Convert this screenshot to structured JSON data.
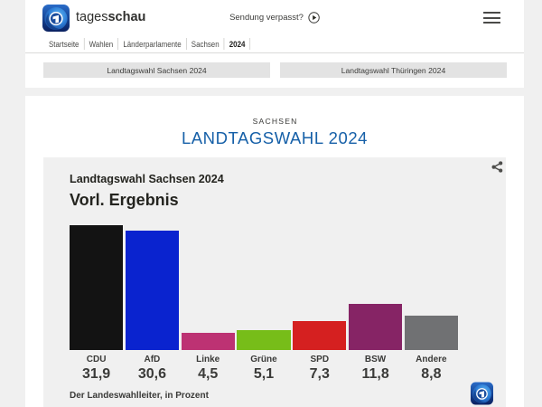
{
  "header": {
    "brand_regular": "tages",
    "brand_bold": "schau",
    "sendung_verpasst": "Sendung verpasst?"
  },
  "breadcrumb": [
    "Startseite",
    "Wahlen",
    "Länderparlamente",
    "Sachsen",
    "2024"
  ],
  "election_nav": {
    "sachsen": "Landtagswahl Sachsen 2024",
    "thueringen": "Landtagswahl Thüringen 2024"
  },
  "main": {
    "kicker": "SACHSEN",
    "title": "LANDTAGSWAHL 2024"
  },
  "chart_data": {
    "type": "bar",
    "title": "Landtagswahl Sachsen 2024",
    "subtitle": "Vorl. Ergebnis",
    "source_note": "Der Landeswahlleiter, in Prozent",
    "unit": "Prozent",
    "categories": [
      "CDU",
      "AfD",
      "Linke",
      "Grüne",
      "SPD",
      "BSW",
      "Andere"
    ],
    "values": [
      31.9,
      30.6,
      4.5,
      5.1,
      7.3,
      11.8,
      8.8
    ],
    "value_labels": [
      "31,9",
      "30,6",
      "4,5",
      "5,1",
      "7,3",
      "11,8",
      "8,8"
    ],
    "bar_colors": [
      "#131313",
      "#0a23cf",
      "#bd3273",
      "#77bd19",
      "#d52020",
      "#862465",
      "#707173"
    ],
    "ylim": [
      0,
      34
    ],
    "grid": false,
    "legend": false
  },
  "colors": {
    "accent_blue": "#1660a8",
    "page_bg": "#f0f0f0",
    "card_bg": "#f0f0f0",
    "button_bg": "#e3e3e3"
  }
}
